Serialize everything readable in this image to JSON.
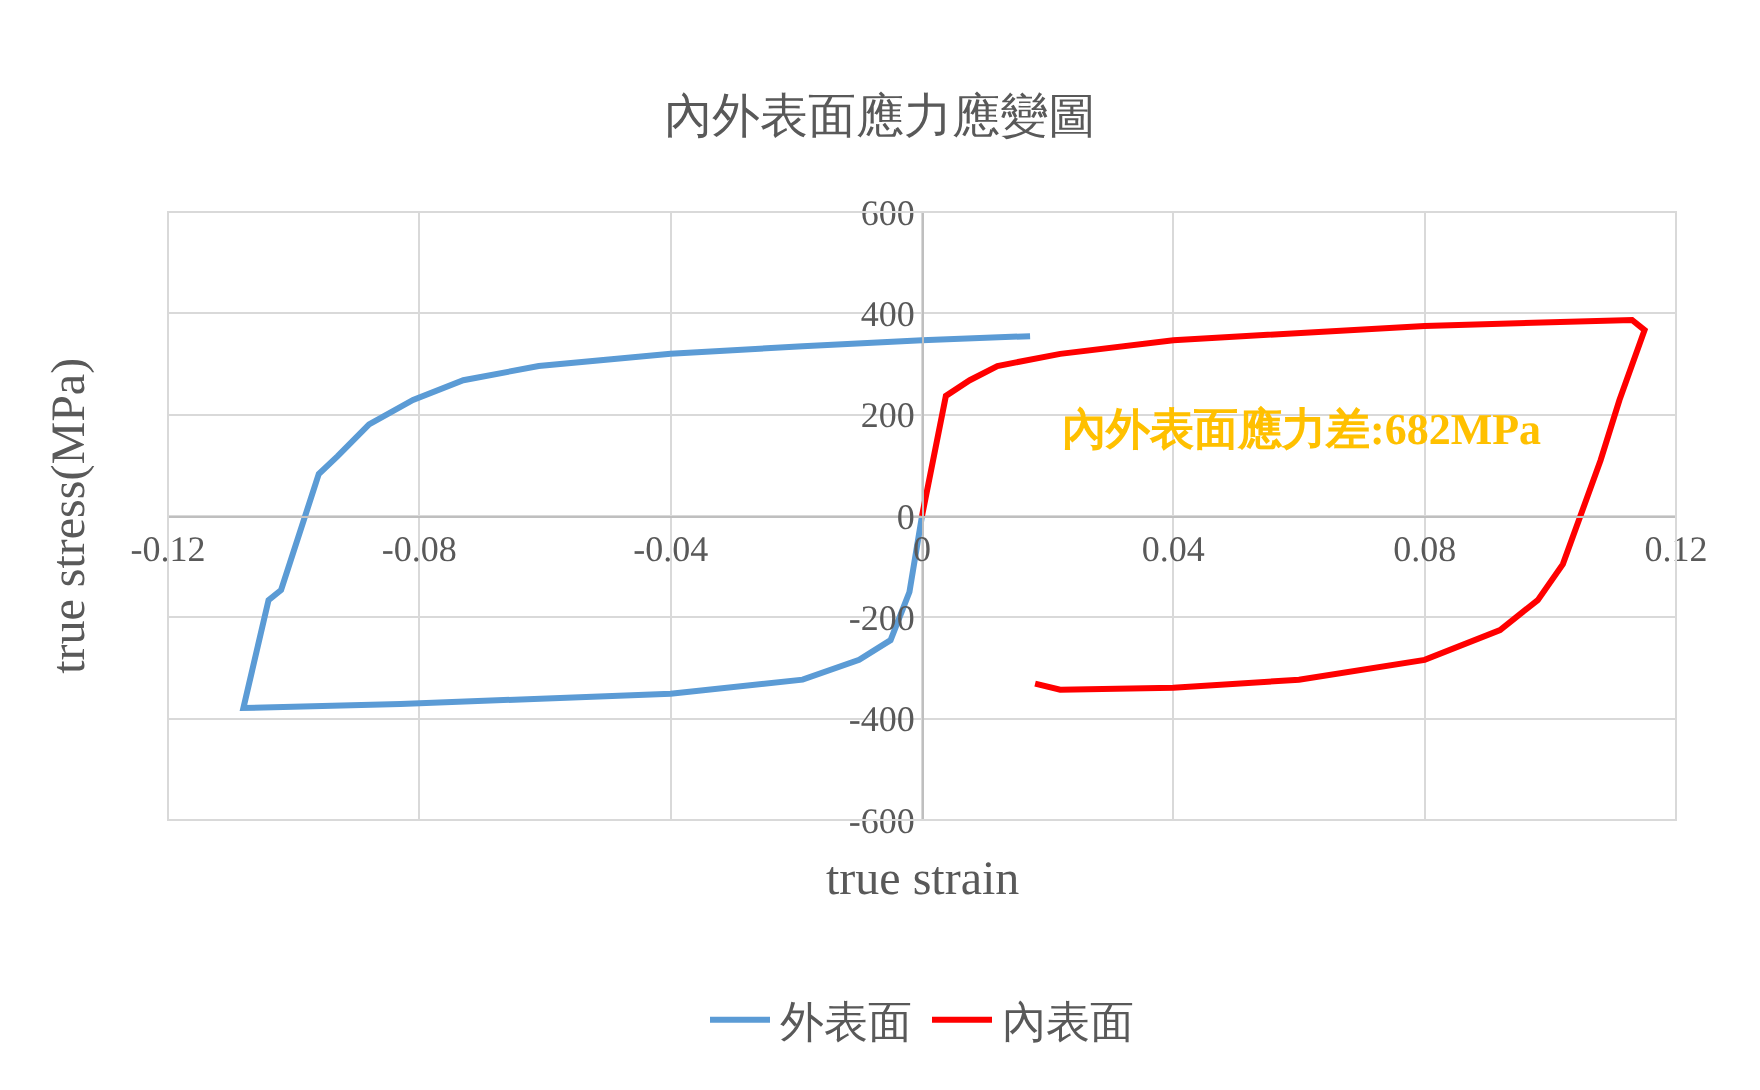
{
  "chart_data": {
    "type": "line",
    "title": "內外表面應力應變圖",
    "xlabel": "true strain",
    "ylabel": "true stress(MPa)",
    "xlim": [
      -0.12,
      0.12
    ],
    "xticks": [
      -0.12,
      -0.08,
      -0.04,
      0,
      0.04,
      0.08,
      0.12
    ],
    "ylim": [
      -600,
      600
    ],
    "yticks": [
      -600,
      -400,
      -200,
      0,
      200,
      400,
      600
    ],
    "grid": true,
    "legend": "bottom",
    "marker": "none",
    "line_style": "solid",
    "annotations": [
      "內外表面應力差:682MPa"
    ],
    "series": [
      {
        "name": "外表面",
        "color": "#5b9bd5",
        "x": [
          0.0172,
          0,
          -0.019,
          -0.04,
          -0.061,
          -0.073,
          -0.081,
          -0.088,
          -0.093,
          -0.096,
          -0.102,
          -0.104,
          -0.108,
          -0.083,
          -0.04,
          -0.019,
          -0.01,
          -0.005,
          -0.002,
          0
        ],
        "values": [
          355,
          347,
          335,
          320,
          296,
          268,
          229,
          181,
          118,
          83,
          -146,
          -166,
          -379,
          -371,
          -351,
          -323,
          -284,
          -245,
          -150,
          0
        ]
      },
      {
        "name": "內表面",
        "color": "#ff0000",
        "x": [
          0,
          0.0038,
          0.0076,
          0.012,
          0.022,
          0.04,
          0.08,
          0.113,
          0.115,
          0.111,
          0.108,
          0.102,
          0.098,
          0.092,
          0.08,
          0.06,
          0.04,
          0.022,
          0.018
        ],
        "values": [
          0,
          237,
          268,
          296,
          320,
          347,
          375,
          387,
          367,
          229,
          110,
          -95,
          -166,
          -225,
          -284,
          -323,
          -339,
          -343,
          -331
        ]
      }
    ]
  }
}
